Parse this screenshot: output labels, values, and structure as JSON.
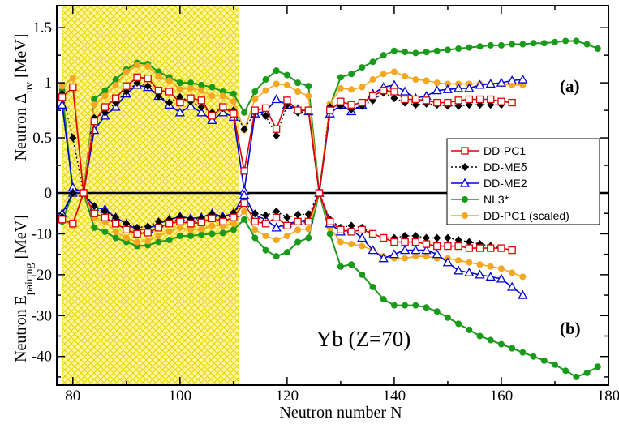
{
  "colors": {
    "DD-PC1": "#e00000",
    "DD-MEδ": "#000000",
    "DD-ME2": "#0000dd",
    "NL3*": "#1a9a1a",
    "DD-PC1 (scaled)": "#f5a623",
    "shade": "#fff59a",
    "shade_border": "#e8d400"
  },
  "chart_data": [
    {
      "panel": "a",
      "type": "line",
      "tag": "(a)",
      "ylabel_main": "Neutron  Δ",
      "ylabel_sub": "uv",
      "ylabel_unit": " [MeV]",
      "xlim": [
        77,
        180
      ],
      "ylim": [
        0,
        1.7
      ],
      "yticks": [
        0,
        0.5,
        1,
        1.5
      ],
      "ytick_labels": [
        "0",
        "0.5",
        "1",
        "1.5"
      ],
      "shaded_x": [
        78,
        111
      ],
      "legend": [
        "DD-PC1",
        "DD-MEδ",
        "DD-ME2",
        "NL3*",
        "DD-PC1 (scaled)"
      ],
      "series": [
        {
          "name": "DD-PC1",
          "marker": "square-open",
          "x": [
            78,
            80,
            82,
            84,
            86,
            88,
            90,
            92,
            94,
            96,
            98,
            100,
            102,
            104,
            106,
            108,
            110,
            112,
            114,
            116,
            118,
            120,
            122,
            124,
            126,
            128,
            130,
            132,
            134,
            136,
            138,
            140,
            142,
            144,
            146,
            148,
            150,
            152,
            154,
            156,
            158,
            160,
            162
          ],
          "y": [
            0.87,
            0.96,
            0.0,
            0.65,
            0.78,
            0.86,
            0.97,
            1.05,
            1.04,
            0.93,
            0.92,
            0.82,
            0.86,
            0.84,
            0.7,
            0.78,
            0.72,
            0.2,
            0.75,
            0.77,
            0.58,
            0.84,
            0.75,
            0.75,
            0.0,
            0.75,
            0.83,
            0.8,
            0.82,
            0.88,
            0.93,
            0.92,
            0.85,
            0.85,
            0.84,
            0.82,
            0.82,
            0.84,
            0.85,
            0.85,
            0.85,
            0.83,
            0.82
          ]
        },
        {
          "name": "DD-MEδ",
          "marker": "diamond-filled",
          "x": [
            78,
            80,
            82,
            84,
            86,
            88,
            90,
            92,
            94,
            96,
            98,
            100,
            102,
            104,
            106,
            108,
            110,
            112,
            114,
            116,
            118,
            120,
            122,
            124,
            126,
            128,
            130,
            132,
            134,
            136,
            138,
            140,
            142,
            144,
            146,
            148,
            150,
            152,
            154,
            156,
            158,
            160
          ],
          "y": [
            0.9,
            0.5,
            0.0,
            0.68,
            0.73,
            0.82,
            0.92,
            1.0,
            0.97,
            0.88,
            0.82,
            0.87,
            0.83,
            0.78,
            0.73,
            0.77,
            0.75,
            0.58,
            0.73,
            0.7,
            0.52,
            0.8,
            0.73,
            0.74,
            0.0,
            0.78,
            0.79,
            0.76,
            0.79,
            0.84,
            0.91,
            0.86,
            0.82,
            0.8,
            0.81,
            0.8,
            0.79,
            0.79,
            0.8,
            0.8,
            0.8,
            0.8
          ]
        },
        {
          "name": "DD-ME2",
          "marker": "triangle-open",
          "x": [
            78,
            80,
            82,
            84,
            86,
            88,
            90,
            92,
            94,
            96,
            98,
            100,
            102,
            104,
            106,
            108,
            110,
            112,
            114,
            116,
            118,
            120,
            122,
            124,
            126,
            128,
            130,
            132,
            134,
            136,
            138,
            140,
            142,
            144,
            146,
            148,
            150,
            152,
            154,
            156,
            158,
            160,
            162,
            164
          ],
          "y": [
            0.8,
            0.05,
            0.0,
            0.57,
            0.7,
            0.78,
            0.9,
            0.98,
            0.96,
            0.88,
            0.8,
            0.73,
            0.79,
            0.73,
            0.66,
            0.73,
            0.69,
            0.02,
            0.72,
            0.74,
            0.85,
            0.8,
            0.76,
            0.74,
            0.0,
            0.72,
            0.8,
            0.74,
            0.8,
            0.9,
            0.96,
            0.98,
            0.92,
            0.86,
            0.88,
            0.93,
            0.94,
            0.95,
            0.95,
            0.98,
            0.99,
            1.0,
            1.02,
            1.03
          ]
        },
        {
          "name": "NL3*",
          "marker": "circle-filled",
          "x": [
            78,
            80,
            82,
            84,
            86,
            88,
            90,
            92,
            94,
            96,
            98,
            100,
            102,
            104,
            106,
            108,
            110,
            112,
            114,
            116,
            118,
            120,
            122,
            124,
            126,
            128,
            130,
            132,
            134,
            136,
            138,
            140,
            142,
            144,
            146,
            148,
            150,
            152,
            154,
            156,
            158,
            160,
            162,
            164,
            166,
            168,
            170,
            172,
            174,
            176,
            178
          ],
          "y": [
            0.93,
            0.0,
            0.0,
            0.85,
            0.93,
            1.03,
            1.12,
            1.18,
            1.17,
            1.1,
            1.05,
            1.0,
            1.0,
            0.98,
            0.96,
            0.92,
            0.9,
            0.73,
            0.92,
            1.03,
            1.11,
            1.07,
            1.0,
            0.97,
            0.0,
            0.79,
            1.05,
            1.08,
            1.14,
            1.19,
            1.25,
            1.29,
            1.28,
            1.27,
            1.28,
            1.29,
            1.3,
            1.31,
            1.32,
            1.33,
            1.34,
            1.34,
            1.35,
            1.35,
            1.36,
            1.36,
            1.37,
            1.38,
            1.38,
            1.35,
            1.31
          ]
        },
        {
          "name": "DD-PC1 (scaled)",
          "marker": "circle-filled",
          "x": [
            78,
            80,
            82,
            84,
            86,
            88,
            90,
            92,
            94,
            96,
            98,
            100,
            102,
            104,
            106,
            108,
            110,
            112,
            114,
            116,
            118,
            120,
            122,
            124,
            126,
            128,
            130,
            132,
            134,
            136,
            138,
            140,
            142,
            144,
            146,
            148,
            150,
            152,
            154,
            156,
            158,
            160,
            162,
            164
          ],
          "y": [
            0.97,
            1.04,
            0.0,
            0.8,
            0.88,
            0.98,
            1.1,
            1.16,
            1.15,
            1.06,
            1.02,
            0.94,
            0.95,
            0.93,
            0.88,
            0.88,
            0.83,
            0.57,
            0.85,
            0.93,
            0.99,
            0.98,
            0.92,
            0.88,
            0.0,
            0.81,
            0.95,
            0.94,
            0.96,
            1.03,
            1.08,
            1.1,
            1.06,
            1.03,
            1.02,
            1.0,
            0.99,
            0.99,
            0.99,
            0.99,
            0.99,
            0.99,
            0.98,
            0.98
          ]
        }
      ]
    },
    {
      "panel": "b",
      "type": "line",
      "tag": "(b)",
      "annotation": "Yb (Z=70)",
      "xlabel": "Neutron  number  N",
      "ylabel_main": "Neutron E",
      "ylabel_sub": "pairing",
      "ylabel_unit": " [MeV]",
      "xlim": [
        77,
        180
      ],
      "ylim": [
        -47,
        0
      ],
      "xticks": [
        80,
        100,
        120,
        140,
        160,
        180
      ],
      "xtick_labels": [
        "80",
        "100",
        "120",
        "140",
        "160",
        "180"
      ],
      "yticks": [
        -40,
        -30,
        -20,
        -10,
        0
      ],
      "ytick_labels": [
        "-40",
        "-30",
        "-20",
        "-10",
        "0"
      ],
      "shaded_x": [
        78,
        111
      ],
      "series": [
        {
          "name": "DD-PC1",
          "marker": "square-open",
          "x": [
            78,
            80,
            82,
            84,
            86,
            88,
            90,
            92,
            94,
            96,
            98,
            100,
            102,
            104,
            106,
            108,
            110,
            112,
            114,
            116,
            118,
            120,
            122,
            124,
            126,
            128,
            130,
            132,
            134,
            136,
            138,
            140,
            142,
            144,
            146,
            148,
            150,
            152,
            154,
            156,
            158,
            160,
            162
          ],
          "y": [
            -6.5,
            -7.5,
            0,
            -5,
            -6,
            -7.5,
            -9,
            -10,
            -9.7,
            -8.5,
            -7.5,
            -7,
            -7.5,
            -7.2,
            -6.2,
            -7,
            -6,
            -2.5,
            -7,
            -7.5,
            -6,
            -8,
            -7,
            -7,
            0,
            -7,
            -9,
            -9.5,
            -9,
            -10,
            -11,
            -12,
            -12,
            -12,
            -12.5,
            -13,
            -13,
            -13,
            -13.5,
            -13.5,
            -13.5,
            -13.5,
            -14
          ]
        },
        {
          "name": "DD-MEδ",
          "marker": "diamond-filled",
          "x": [
            78,
            80,
            82,
            84,
            86,
            88,
            90,
            92,
            94,
            96,
            98,
            100,
            102,
            104,
            106,
            108,
            110,
            112,
            114,
            116,
            118,
            120,
            122,
            124,
            126,
            128,
            130,
            132,
            134,
            136,
            138,
            140,
            142,
            144,
            146,
            148,
            150,
            152,
            154,
            156,
            158,
            160
          ],
          "y": [
            -5.8,
            0,
            0,
            -3.2,
            -4.5,
            -6,
            -7.5,
            -8.5,
            -8.2,
            -7,
            -6.5,
            -5.8,
            -6.5,
            -6.2,
            -5.2,
            -6,
            -4.8,
            -2.2,
            -5,
            -5.5,
            -4.5,
            -6,
            -5.3,
            -5.2,
            0,
            -6.5,
            -8.5,
            -8,
            -8.5,
            -10,
            -11,
            -11,
            -10.5,
            -10.5,
            -11,
            -11,
            -11,
            -11.5,
            -12,
            -12.5,
            -13,
            -13.5
          ]
        },
        {
          "name": "DD-ME2",
          "marker": "triangle-open",
          "x": [
            78,
            80,
            82,
            84,
            86,
            88,
            90,
            92,
            94,
            96,
            98,
            100,
            102,
            104,
            106,
            108,
            110,
            112,
            114,
            116,
            118,
            120,
            122,
            124,
            126,
            128,
            130,
            132,
            134,
            136,
            138,
            140,
            142,
            144,
            146,
            148,
            150,
            152,
            154,
            156,
            158,
            160,
            162,
            164
          ],
          "y": [
            -5,
            0,
            0,
            -3.5,
            -4,
            -6,
            -7.5,
            -9,
            -8.8,
            -7.5,
            -6.5,
            -5.8,
            -6.2,
            -6,
            -5,
            -5.8,
            -5,
            -0.5,
            -5.5,
            -6.5,
            -8.5,
            -7.5,
            -7,
            -6.5,
            0,
            -7.5,
            -9.5,
            -9,
            -11,
            -14,
            -16,
            -15,
            -14,
            -14,
            -14,
            -15,
            -17,
            -19,
            -19.5,
            -20,
            -20.5,
            -21,
            -23,
            -25
          ]
        },
        {
          "name": "NL3*",
          "marker": "circle-filled",
          "x": [
            78,
            80,
            82,
            84,
            86,
            88,
            90,
            92,
            94,
            96,
            98,
            100,
            102,
            104,
            106,
            108,
            110,
            112,
            114,
            116,
            118,
            120,
            122,
            124,
            126,
            128,
            130,
            132,
            134,
            136,
            138,
            140,
            142,
            144,
            146,
            148,
            150,
            152,
            154,
            156,
            158,
            160,
            162,
            164,
            166,
            168,
            170,
            172,
            174,
            176,
            178
          ],
          "y": [
            -7,
            0,
            0,
            -8.5,
            -9.5,
            -11,
            -12,
            -13,
            -12.8,
            -12,
            -11.5,
            -10.5,
            -10.5,
            -10.2,
            -10,
            -9.8,
            -9,
            -6.5,
            -11,
            -14,
            -15.5,
            -14.5,
            -12,
            -11,
            0,
            -10,
            -18,
            -17.5,
            -20,
            -23,
            -26,
            -27.5,
            -27.5,
            -27.5,
            -28,
            -29,
            -30.5,
            -32,
            -33.5,
            -35,
            -36,
            -37,
            -38,
            -39,
            -40,
            -41,
            -42,
            -43.5,
            -45,
            -44,
            -42.5
          ]
        },
        {
          "name": "DD-PC1 (scaled)",
          "marker": "circle-filled",
          "x": [
            78,
            80,
            82,
            84,
            86,
            88,
            90,
            92,
            94,
            96,
            98,
            100,
            102,
            104,
            106,
            108,
            110,
            112,
            114,
            116,
            118,
            120,
            122,
            124,
            126,
            128,
            130,
            132,
            134,
            136,
            138,
            140,
            142,
            144,
            146,
            148,
            150,
            152,
            154,
            156,
            158,
            160,
            162,
            164
          ],
          "y": [
            -6.5,
            -8,
            0,
            -6,
            -7,
            -9.5,
            -11,
            -12,
            -11.8,
            -10.5,
            -9.5,
            -8.5,
            -9,
            -8.8,
            -8,
            -8,
            -7.5,
            -4.5,
            -9,
            -10.5,
            -11.5,
            -10.5,
            -9,
            -8.8,
            0,
            -8.5,
            -12,
            -12.5,
            -13,
            -14,
            -15.5,
            -16,
            -16,
            -15.5,
            -15.5,
            -16,
            -16,
            -16.5,
            -17,
            -17.5,
            -18,
            -18.5,
            -19.5,
            -20.5
          ]
        }
      ]
    }
  ]
}
